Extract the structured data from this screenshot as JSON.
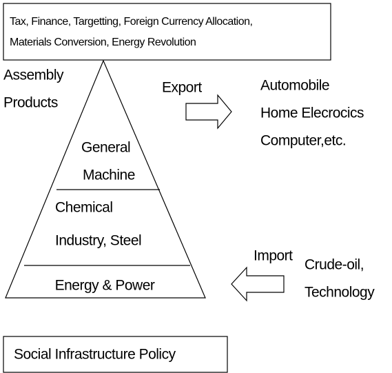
{
  "policy_box": {
    "lines": [
      "Tax, Finance, Targetting, Foreign Currency Allocation,",
      "Materials Conversion, Energy Revolution"
    ]
  },
  "pyramid": {
    "levels": [
      {
        "lines": [
          "Assembly",
          "Products"
        ]
      },
      {
        "lines": [
          "General",
          "Machine"
        ]
      },
      {
        "lines": [
          "Chemical",
          "Industry, Steel"
        ]
      },
      {
        "lines": [
          "Energy & Power"
        ]
      }
    ]
  },
  "export": {
    "label": "Export",
    "items": [
      "Automobile",
      "Home Elecrocics",
      "Computer,etc."
    ]
  },
  "import": {
    "label": "Import",
    "items": [
      "Crude-oil,",
      "Technology"
    ]
  },
  "infrastructure_box": {
    "label": "Social Infrastructure Policy"
  }
}
